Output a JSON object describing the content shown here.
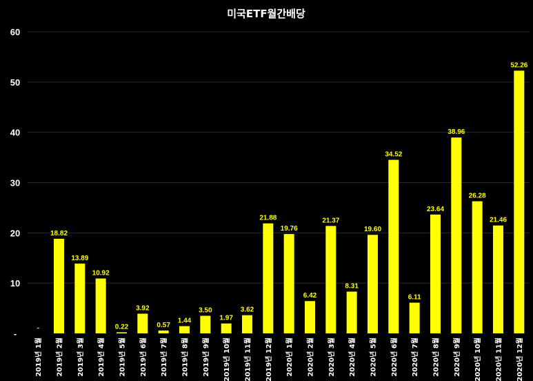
{
  "chart_data": {
    "type": "bar",
    "title": "미국ETF월간배당",
    "xlabel": "",
    "ylabel": "",
    "ylim": [
      0,
      60
    ],
    "yticks": [
      "60",
      "50",
      "40",
      "30",
      "20",
      "10",
      "-"
    ],
    "ytick_values": [
      60,
      50,
      40,
      30,
      20,
      10,
      0
    ],
    "grid": true,
    "legend": "none",
    "bar_color": "#FFFF00",
    "label_color": "#FFFF00",
    "background_color": "#000000",
    "categories": [
      "2019년 1월",
      "2019년 2월",
      "2019년 3월",
      "2019년 4월",
      "2019년 5월",
      "2019년 6월",
      "2019년 7월",
      "2019년 8월",
      "2019년 9월",
      "2019년 10월",
      "2019년 11월",
      "2019년 12월",
      "2020년 1월",
      "2020년 2월",
      "2020년 3월",
      "2020년 4월",
      "2020년 5월",
      "2020년 6월",
      "2020년 7월",
      "2020년 8월",
      "2020년 9월",
      "2020년 10월",
      "2020년 11월",
      "2020년 12월"
    ],
    "values": [
      0,
      18.82,
      13.89,
      10.92,
      0.22,
      3.92,
      0.57,
      1.44,
      3.5,
      1.97,
      3.62,
      21.88,
      19.76,
      6.42,
      21.37,
      8.31,
      19.6,
      34.52,
      6.11,
      23.64,
      38.96,
      26.28,
      21.46,
      52.26
    ],
    "data_labels": [
      "-",
      "18.82",
      "13.89",
      "10.92",
      "0.22",
      "3.92",
      "0.57",
      "1.44",
      "3.50",
      "1.97",
      "3.62",
      "21.88",
      "19.76",
      "6.42",
      "21.37",
      "8.31",
      "19.60",
      "34.52",
      "6.11",
      "23.64",
      "38.96",
      "26.28",
      "21.46",
      "52.26"
    ]
  }
}
